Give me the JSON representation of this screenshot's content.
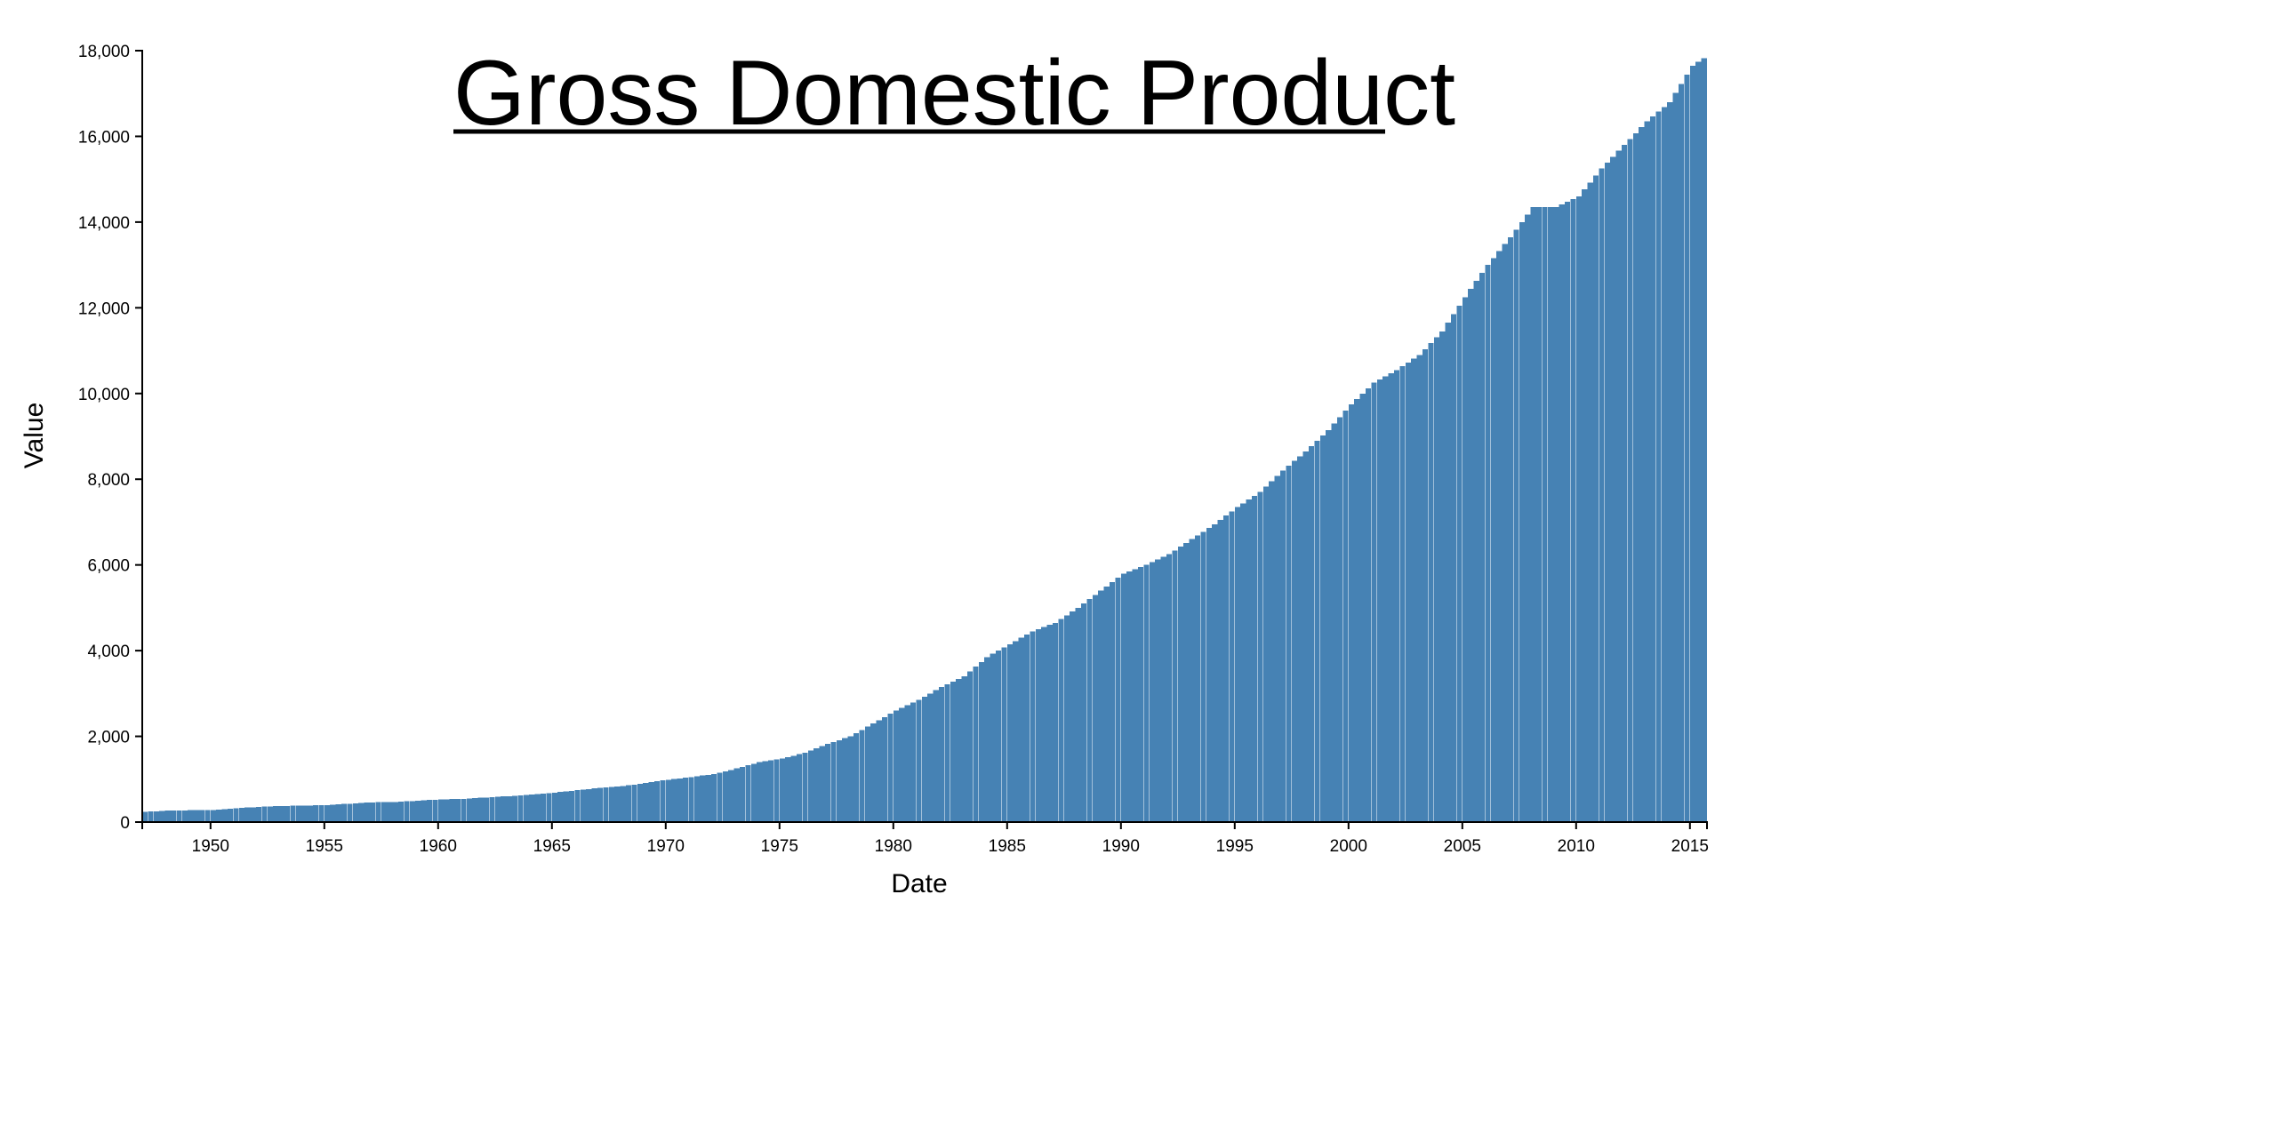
{
  "chart_data": {
    "type": "bar",
    "title": "Gross Domestic Product",
    "xlabel": "Date",
    "ylabel": "Value",
    "x_range": [
      "1947-01-01",
      "2015-07-01"
    ],
    "frequency": "quarterly",
    "ylim": [
      0,
      18000
    ],
    "yticks": [
      0,
      2000,
      4000,
      6000,
      8000,
      10000,
      12000,
      14000,
      16000,
      18000
    ],
    "ytick_labels": [
      "0",
      "2,000",
      "4,000",
      "6,000",
      "8,000",
      "10,000",
      "12,000",
      "14,000",
      "16,000",
      "18,000"
    ],
    "xticks": [
      1950,
      1955,
      1960,
      1965,
      1970,
      1975,
      1980,
      1985,
      1990,
      1995,
      2000,
      2005,
      2010,
      2015
    ],
    "xtick_labels": [
      "1950",
      "1955",
      "1960",
      "1965",
      "1970",
      "1975",
      "1980",
      "1985",
      "1990",
      "1995",
      "2000",
      "2005",
      "2010",
      "2015"
    ],
    "grid": false,
    "bar_color": "#4682b4",
    "annual_anchors": {
      "years": [
        1947,
        1948,
        1949,
        1950,
        1951,
        1952,
        1953,
        1954,
        1955,
        1956,
        1957,
        1958,
        1959,
        1960,
        1961,
        1962,
        1963,
        1964,
        1965,
        1966,
        1967,
        1968,
        1969,
        1970,
        1971,
        1972,
        1973,
        1974,
        1975,
        1976,
        1977,
        1978,
        1979,
        1980,
        1981,
        1982,
        1983,
        1984,
        1985,
        1986,
        1987,
        1988,
        1989,
        1990,
        1991,
        1992,
        1993,
        1994,
        1995,
        1996,
        1997,
        1998,
        1999,
        2000,
        2001,
        2002,
        2003,
        2004,
        2005,
        2006,
        2007,
        2008,
        2009,
        2010,
        2011,
        2012,
        2013,
        2014,
        2015,
        2016
      ],
      "values": [
        243,
        265,
        275,
        275,
        320,
        355,
        375,
        385,
        395,
        430,
        460,
        470,
        500,
        530,
        540,
        575,
        605,
        640,
        685,
        745,
        800,
        840,
        910,
        990,
        1050,
        1120,
        1250,
        1400,
        1480,
        1620,
        1820,
        2000,
        2300,
        2600,
        2850,
        3150,
        3400,
        3850,
        4150,
        4450,
        4650,
        5000,
        5400,
        5800,
        6000,
        6250,
        6600,
        6950,
        7350,
        7700,
        8200,
        8650,
        9150,
        9750,
        10250,
        10550,
        10900,
        11450,
        12250,
        13000,
        13650,
        14350,
        14350,
        14600,
        15250,
        15800,
        16350,
        16800,
        17650,
        18000
      ]
    }
  }
}
